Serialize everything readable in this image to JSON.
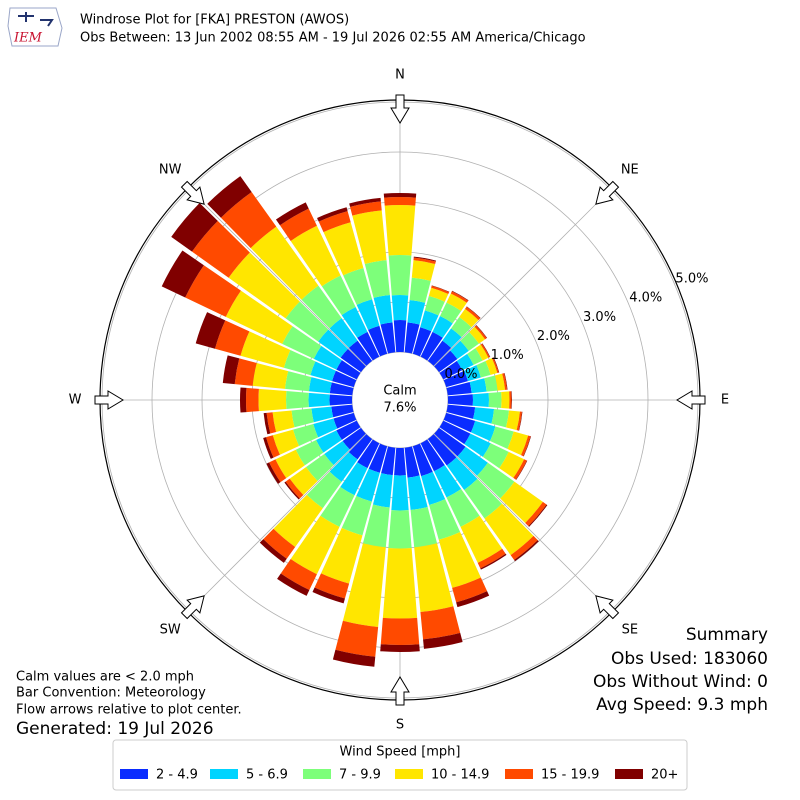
{
  "header": {
    "logo_text": "IEM",
    "title": "Windrose Plot for [FKA] PRESTON (AWOS)",
    "subtitle": "Obs Between: 13 Jun 2002 08:55 AM - 19 Jul 2026 02:55 AM America/Chicago"
  },
  "chart_data": {
    "type": "windrose",
    "direction_labels": [
      "N",
      "NE",
      "E",
      "SE",
      "S",
      "SW",
      "W",
      "NW"
    ],
    "calm": {
      "label": "Calm",
      "value_label": "7.6%"
    },
    "rlim": [
      0,
      5.04
    ],
    "rticks": [
      {
        "value": 0,
        "label": "0.0%"
      },
      {
        "value": 1,
        "label": "1.0%"
      },
      {
        "value": 2,
        "label": "2.0%"
      },
      {
        "value": 3,
        "label": "3.0%"
      },
      {
        "value": 4,
        "label": "4.0%"
      },
      {
        "value": 5,
        "label": "5.0%"
      }
    ],
    "legend_title": "Wind Speed [mph]",
    "series": [
      {
        "name": "2 - 4.9",
        "color": "#0a2cff",
        "values": [
          0.64,
          0.6,
          0.55,
          0.55,
          0.5,
          0.45,
          0.42,
          0.45,
          0.48,
          0.5,
          0.55,
          0.6,
          0.6,
          0.65,
          0.65,
          0.62,
          0.62,
          0.6,
          0.55,
          0.55,
          0.55,
          0.55,
          0.5,
          0.45,
          0.45,
          0.42,
          0.42,
          0.45,
          0.45,
          0.45,
          0.45,
          0.5,
          0.5,
          0.55,
          0.58,
          0.6
        ]
      },
      {
        "name": "5 - 6.9",
        "color": "#00d4ff",
        "values": [
          0.5,
          0.45,
          0.35,
          0.35,
          0.3,
          0.28,
          0.25,
          0.27,
          0.3,
          0.32,
          0.38,
          0.42,
          0.45,
          0.55,
          0.6,
          0.58,
          0.6,
          0.65,
          0.7,
          0.65,
          0.6,
          0.6,
          0.55,
          0.45,
          0.45,
          0.42,
          0.4,
          0.42,
          0.42,
          0.45,
          0.5,
          0.55,
          0.55,
          0.55,
          0.55,
          0.55
        ]
      },
      {
        "name": "7 - 9.9",
        "color": "#7dff7a",
        "values": [
          0.8,
          0.45,
          0.3,
          0.3,
          0.28,
          0.25,
          0.2,
          0.2,
          0.22,
          0.25,
          0.3,
          0.38,
          0.4,
          0.65,
          0.7,
          0.65,
          0.72,
          0.75,
          0.76,
          0.8,
          0.7,
          0.7,
          0.65,
          0.45,
          0.45,
          0.42,
          0.4,
          0.45,
          0.48,
          0.55,
          0.7,
          0.8,
          0.8,
          0.7,
          0.65,
          0.7
        ]
      },
      {
        "name": "10 - 14.9",
        "color": "#ffe600",
        "values": [
          1.0,
          0.35,
          0.17,
          0.2,
          0.2,
          0.15,
          0.13,
          0.14,
          0.15,
          0.16,
          0.22,
          0.3,
          0.34,
          0.7,
          0.9,
          0.8,
          1.0,
          1.3,
          1.4,
          1.6,
          1.0,
          1.05,
          0.95,
          0.4,
          0.45,
          0.42,
          0.38,
          0.55,
          0.65,
          0.9,
          1.25,
          1.4,
          1.45,
          1.1,
          0.95,
          1.0
        ]
      },
      {
        "name": "15 - 19.9",
        "color": "#ff4a00",
        "values": [
          0.16,
          0.05,
          0.04,
          0.05,
          0.05,
          0.04,
          0.03,
          0.03,
          0.04,
          0.04,
          0.04,
          0.05,
          0.06,
          0.09,
          0.12,
          0.12,
          0.3,
          0.55,
          0.53,
          0.6,
          0.31,
          0.35,
          0.29,
          0.1,
          0.14,
          0.14,
          0.12,
          0.25,
          0.36,
          0.53,
          0.9,
          0.9,
          0.85,
          0.38,
          0.23,
          0.18
        ]
      },
      {
        "name": "20+",
        "color": "#800000",
        "values": [
          0.08,
          0.02,
          0.01,
          0.01,
          0.01,
          0.01,
          0.01,
          0.01,
          0.01,
          0.01,
          0.01,
          0.01,
          0.01,
          0.02,
          0.03,
          0.03,
          0.1,
          0.19,
          0.14,
          0.2,
          0.1,
          0.13,
          0.1,
          0.03,
          0.06,
          0.06,
          0.06,
          0.12,
          0.24,
          0.4,
          0.52,
          0.51,
          0.39,
          0.14,
          0.08,
          0.07
        ]
      }
    ]
  },
  "notes": [
    "Calm values are < 2.0 mph",
    "Bar Convention: Meteorology",
    "Flow arrows relative to plot center."
  ],
  "generated": "Generated: 19 Jul 2026",
  "summary": [
    "Summary",
    "Obs Used: 183060",
    "Obs Without Wind: 0",
    "Avg Speed: 9.3 mph"
  ]
}
